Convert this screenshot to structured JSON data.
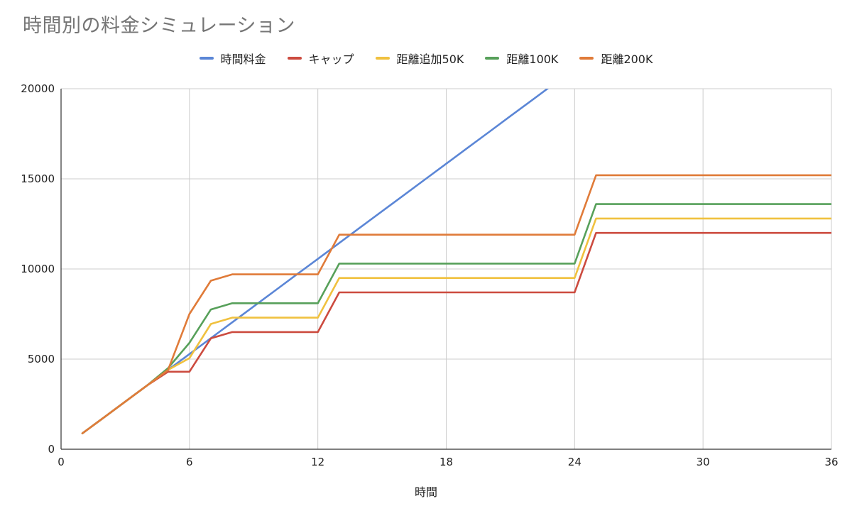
{
  "chart_data": {
    "type": "line",
    "title": "時間別の料金シミュレーション",
    "xlabel": "時間",
    "ylabel": "",
    "xlim": [
      0,
      36
    ],
    "ylim": [
      0,
      20000
    ],
    "x_ticks": [
      0,
      6,
      12,
      18,
      24,
      30,
      36
    ],
    "y_ticks": [
      0,
      5000,
      10000,
      15000,
      20000
    ],
    "grid": true,
    "legend_position": "top",
    "series": [
      {
        "name": "時間料金",
        "color": "#5b86d6",
        "points": [
          [
            1,
            880
          ],
          [
            2,
            1760
          ],
          [
            3,
            2640
          ],
          [
            4,
            3520
          ],
          [
            5,
            4400
          ],
          [
            6,
            5280
          ],
          [
            7,
            6160
          ],
          [
            8,
            7040
          ],
          [
            9,
            7920
          ],
          [
            10,
            8800
          ],
          [
            11,
            9680
          ],
          [
            12,
            10560
          ],
          [
            13,
            11440
          ],
          [
            14,
            12320
          ],
          [
            15,
            13200
          ],
          [
            16,
            14080
          ],
          [
            17,
            14960
          ],
          [
            18,
            15840
          ],
          [
            19,
            16720
          ],
          [
            20,
            17600
          ],
          [
            21,
            18480
          ],
          [
            22,
            19360
          ],
          [
            23,
            20240
          ]
        ]
      },
      {
        "name": "キャップ",
        "color": "#cc4b3f",
        "points": [
          [
            1,
            880
          ],
          [
            2,
            1760
          ],
          [
            3,
            2640
          ],
          [
            4,
            3520
          ],
          [
            5,
            4300
          ],
          [
            6,
            4300
          ],
          [
            7,
            6150
          ],
          [
            8,
            6500
          ],
          [
            12,
            6500
          ],
          [
            13,
            8700
          ],
          [
            24,
            8700
          ],
          [
            25,
            12000
          ],
          [
            36,
            12000
          ]
        ]
      },
      {
        "name": "距離追加50K",
        "color": "#f0c13f",
        "points": [
          [
            1,
            880
          ],
          [
            2,
            1760
          ],
          [
            3,
            2640
          ],
          [
            4,
            3520
          ],
          [
            5,
            4400
          ],
          [
            6,
            5050
          ],
          [
            7,
            6950
          ],
          [
            8,
            7300
          ],
          [
            12,
            7300
          ],
          [
            13,
            9500
          ],
          [
            24,
            9500
          ],
          [
            25,
            12800
          ],
          [
            36,
            12800
          ]
        ]
      },
      {
        "name": "距離100K",
        "color": "#57a05a",
        "points": [
          [
            1,
            880
          ],
          [
            2,
            1760
          ],
          [
            3,
            2640
          ],
          [
            4,
            3520
          ],
          [
            5,
            4500
          ],
          [
            6,
            5900
          ],
          [
            7,
            7750
          ],
          [
            8,
            8100
          ],
          [
            12,
            8100
          ],
          [
            13,
            10300
          ],
          [
            24,
            10300
          ],
          [
            25,
            13600
          ],
          [
            36,
            13600
          ]
        ]
      },
      {
        "name": "距離200K",
        "color": "#e07b39",
        "points": [
          [
            1,
            880
          ],
          [
            2,
            1760
          ],
          [
            3,
            2640
          ],
          [
            4,
            3520
          ],
          [
            5,
            4400
          ],
          [
            6,
            7500
          ],
          [
            7,
            9350
          ],
          [
            8,
            9700
          ],
          [
            12,
            9700
          ],
          [
            13,
            11900
          ],
          [
            24,
            11900
          ],
          [
            25,
            15200
          ],
          [
            36,
            15200
          ]
        ]
      }
    ]
  }
}
